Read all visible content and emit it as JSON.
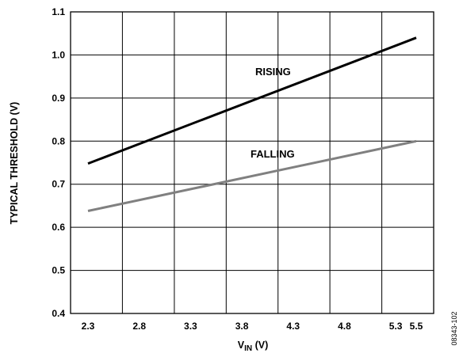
{
  "chart_data": {
    "type": "line",
    "x": [
      2.3,
      5.5
    ],
    "xticks": [
      2.3,
      2.8,
      3.3,
      3.8,
      4.3,
      4.8,
      5.3,
      5.5
    ],
    "xtick_labels": [
      "2.3",
      "2.8",
      "3.3",
      "3.8",
      "4.3",
      "4.8",
      "5.3",
      "5.5"
    ],
    "yticks": [
      0.4,
      0.5,
      0.6,
      0.7,
      0.8,
      0.9,
      1.0,
      1.1
    ],
    "ytick_labels": [
      "0.4",
      "0.5",
      "0.6",
      "0.7",
      "0.8",
      "0.9",
      "1.0",
      "1.1"
    ],
    "xlim": [
      2.3,
      5.5
    ],
    "ylim": [
      0.4,
      1.1
    ],
    "grid": true,
    "xlabel": {
      "main": "V",
      "sub": "IN",
      "unit": " (V)"
    },
    "ylabel": "TYPICAL THRESHOLD (V)",
    "series": [
      {
        "name": "RISING",
        "x": [
          2.3,
          5.5
        ],
        "values": [
          0.748,
          1.04
        ],
        "color": "#000000"
      },
      {
        "name": "FALLING",
        "x": [
          2.3,
          5.5
        ],
        "values": [
          0.638,
          0.8
        ],
        "color": "#808080"
      }
    ],
    "figure_id": "08343-102"
  }
}
